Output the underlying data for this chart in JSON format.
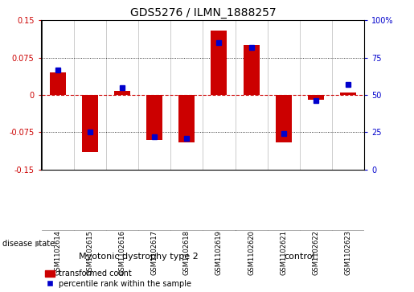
{
  "title": "GDS5276 / ILMN_1888257",
  "samples": [
    "GSM1102614",
    "GSM1102615",
    "GSM1102616",
    "GSM1102617",
    "GSM1102618",
    "GSM1102619",
    "GSM1102620",
    "GSM1102621",
    "GSM1102622",
    "GSM1102623"
  ],
  "red_values": [
    0.045,
    -0.115,
    0.008,
    -0.09,
    -0.095,
    0.13,
    0.1,
    -0.095,
    -0.01,
    0.005
  ],
  "blue_values": [
    67,
    25,
    55,
    22,
    21,
    85,
    82,
    24,
    46,
    57
  ],
  "ylim_left": [
    -0.15,
    0.15
  ],
  "ylim_right": [
    0,
    100
  ],
  "yticks_left": [
    -0.15,
    -0.075,
    0,
    0.075,
    0.15
  ],
  "ytick_labels_left": [
    "-0.15",
    "-0.075",
    "0",
    "0.075",
    "0.15"
  ],
  "yticks_right": [
    0,
    25,
    50,
    75,
    100
  ],
  "ytick_labels_right": [
    "0",
    "25",
    "50",
    "75",
    "100%"
  ],
  "red_color": "#CC0000",
  "blue_color": "#0000CC",
  "bar_width": 0.5,
  "marker_size": 5,
  "group_labels": [
    "Myotonic dystrophy type 2",
    "control"
  ],
  "group_ranges": [
    [
      0,
      5
    ],
    [
      6,
      9
    ]
  ],
  "group_color": "#90EE90",
  "label_bg_color": "#cccccc",
  "disease_state_label": "disease state",
  "legend_red": "transformed count",
  "legend_blue": "percentile rank within the sample",
  "title_fontsize": 10,
  "tick_fontsize": 7,
  "sample_fontsize": 6,
  "group_fontsize": 8
}
